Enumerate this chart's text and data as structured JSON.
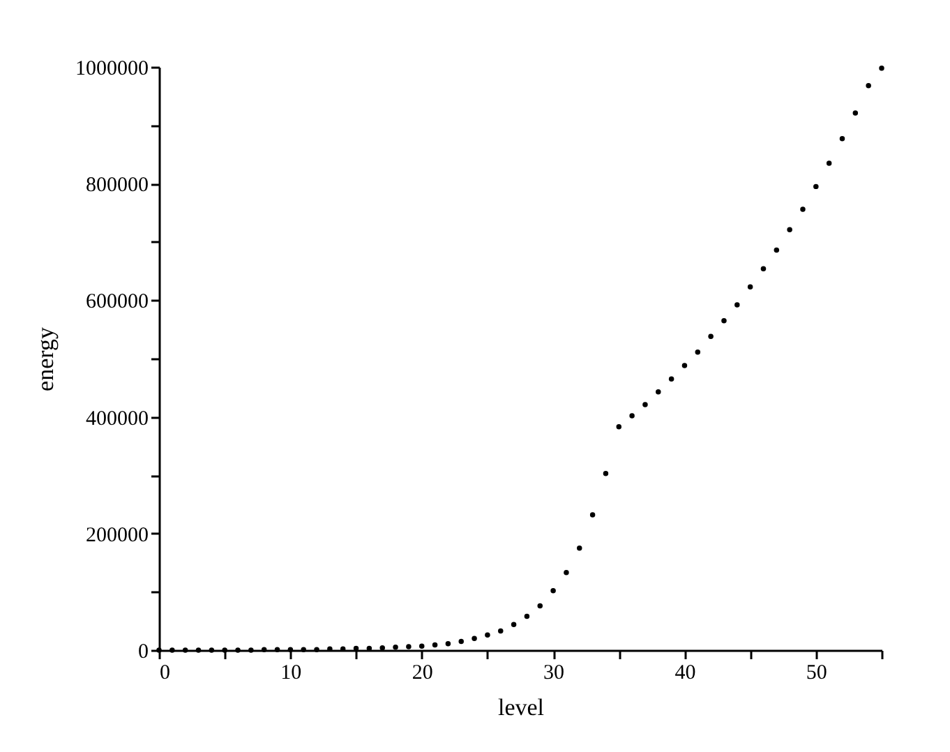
{
  "chart_data": {
    "type": "scatter",
    "xlabel": "level",
    "ylabel": "energy",
    "x": [
      0,
      1,
      2,
      3,
      4,
      5,
      6,
      7,
      8,
      9,
      10,
      11,
      12,
      13,
      14,
      15,
      16,
      17,
      18,
      19,
      20,
      21,
      22,
      23,
      24,
      25,
      26,
      27,
      28,
      29,
      30,
      31,
      32,
      33,
      34,
      35,
      36,
      37,
      38,
      39,
      40,
      41,
      42,
      43,
      44,
      45,
      46,
      47,
      48,
      49,
      50,
      51,
      52,
      53,
      54,
      55
    ],
    "series": [
      {
        "color": "#000000",
        "values": [
          0,
          0,
          0,
          0,
          0,
          0,
          0,
          0,
          1000,
          1000,
          1000,
          1000,
          1000,
          2000,
          2000,
          3000,
          3000,
          4000,
          5000,
          6000,
          7000,
          9000,
          11000,
          15000,
          20000,
          26000,
          33000,
          44000,
          58000,
          76000,
          102000,
          133000,
          175000,
          232000,
          303000,
          383000,
          402000,
          421000,
          443000,
          465000,
          488000,
          511000,
          538000,
          565000,
          592000,
          623000,
          654000,
          686000,
          721000,
          756000,
          795000,
          835000,
          877000,
          921000,
          968000,
          998000
        ]
      }
    ],
    "xlim": [
      0,
      55
    ],
    "ylim": [
      0,
      1000000
    ],
    "xticks": [
      0,
      {
        "value": 5,
        "label": null
      },
      10,
      {
        "value": 15,
        "label": null
      },
      20,
      {
        "value": 25,
        "label": null
      },
      30,
      {
        "value": 35,
        "label": null
      },
      40,
      {
        "value": 45,
        "label": null
      },
      50,
      {
        "value": 55,
        "label": null
      }
    ],
    "yticks": [
      0,
      {
        "value": 100000,
        "label": null
      },
      200000,
      {
        "value": 300000,
        "label": null
      },
      400000,
      {
        "value": 500000,
        "label": null
      },
      600000,
      {
        "value": 700000,
        "label": null
      },
      800000,
      {
        "value": 900000,
        "label": null
      },
      1000000
    ],
    "grid": false
  }
}
